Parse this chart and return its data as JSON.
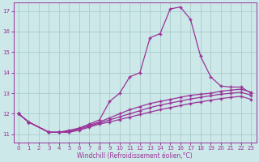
{
  "background_color": "#cde8e8",
  "grid_color": "#aacccc",
  "line_color": "#993399",
  "marker": "+",
  "xlabel": "Windchill (Refroidissement éolien,°C)",
  "ylim": [
    10.6,
    17.4
  ],
  "xlim": [
    -0.5,
    23.5
  ],
  "yticks": [
    11,
    12,
    13,
    14,
    15,
    16,
    17
  ],
  "xticks": [
    0,
    1,
    2,
    3,
    4,
    5,
    6,
    7,
    8,
    9,
    10,
    11,
    12,
    13,
    14,
    15,
    16,
    17,
    18,
    19,
    20,
    21,
    22,
    23
  ],
  "x_main": [
    0,
    1,
    3,
    4,
    5,
    6,
    7,
    8,
    9,
    10,
    11,
    12,
    13,
    14,
    15,
    16,
    17,
    18,
    19,
    20,
    21,
    22,
    23
  ],
  "y_main": [
    12.0,
    11.6,
    11.1,
    11.1,
    11.1,
    11.3,
    11.5,
    11.7,
    12.6,
    13.0,
    13.8,
    14.0,
    15.7,
    15.9,
    17.1,
    17.2,
    16.6,
    14.8,
    13.8,
    13.35,
    13.3,
    13.3,
    13.0
  ],
  "x_upper": [
    0,
    1,
    3,
    4,
    5,
    6,
    7,
    8,
    9,
    10,
    11,
    12,
    13,
    14,
    15,
    16,
    17,
    18,
    19,
    20,
    21,
    22,
    23
  ],
  "y_upper": [
    12.0,
    11.6,
    11.1,
    11.1,
    11.2,
    11.3,
    11.45,
    11.6,
    11.8,
    12.0,
    12.2,
    12.35,
    12.5,
    12.6,
    12.7,
    12.8,
    12.9,
    12.95,
    13.0,
    13.1,
    13.15,
    13.2,
    13.05
  ],
  "x_middle": [
    0,
    1,
    3,
    4,
    5,
    6,
    7,
    8,
    9,
    10,
    11,
    12,
    13,
    14,
    15,
    16,
    17,
    18,
    19,
    20,
    21,
    22,
    23
  ],
  "y_middle": [
    12.0,
    11.6,
    11.1,
    11.1,
    11.15,
    11.25,
    11.4,
    11.55,
    11.7,
    11.85,
    12.0,
    12.15,
    12.3,
    12.42,
    12.52,
    12.62,
    12.72,
    12.8,
    12.88,
    12.95,
    13.0,
    13.05,
    12.9
  ],
  "x_lower": [
    0,
    1,
    3,
    4,
    5,
    6,
    7,
    8,
    9,
    10,
    11,
    12,
    13,
    14,
    15,
    16,
    17,
    18,
    19,
    20,
    21,
    22,
    23
  ],
  "y_lower": [
    12.0,
    11.6,
    11.1,
    11.1,
    11.1,
    11.2,
    11.35,
    11.5,
    11.6,
    11.72,
    11.84,
    11.96,
    12.08,
    12.2,
    12.3,
    12.4,
    12.5,
    12.58,
    12.66,
    12.74,
    12.8,
    12.85,
    12.7
  ]
}
